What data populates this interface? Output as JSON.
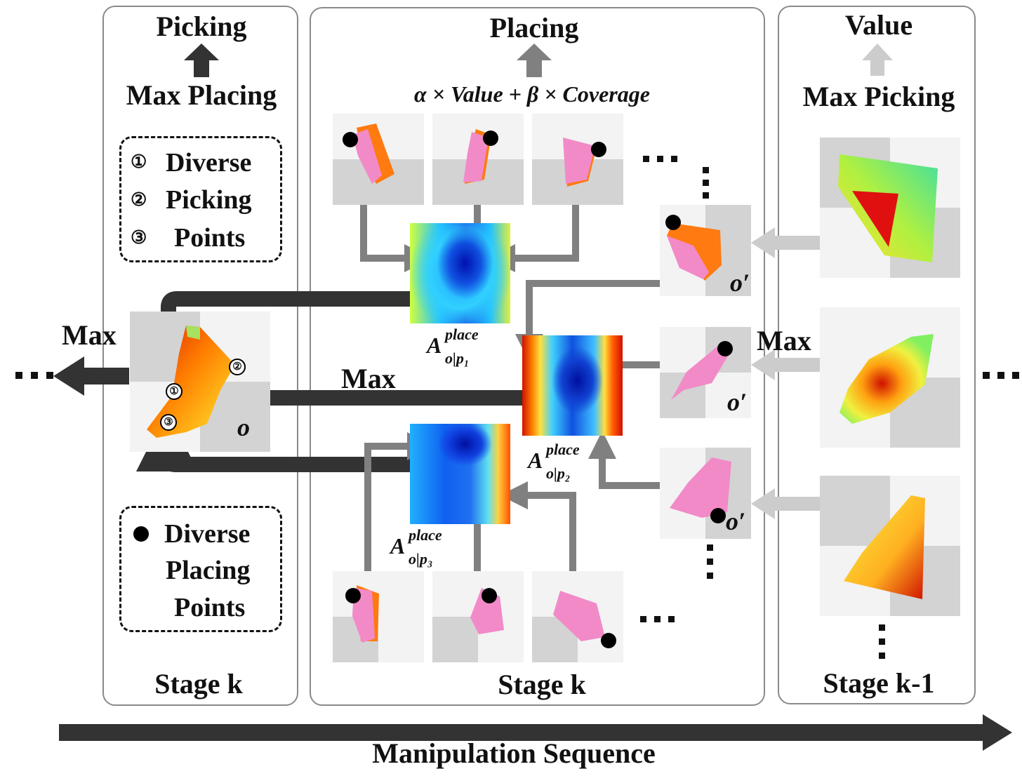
{
  "left_panel": {
    "title": "Picking",
    "subtitle": "Max Placing",
    "box1": {
      "item1_num": "①",
      "item1": "Diverse",
      "item2_num": "②",
      "item2": "Picking",
      "item3_num": "③",
      "item3": "Points"
    },
    "box2": {
      "line1": "Diverse",
      "line2": "Placing",
      "line3": "Points"
    },
    "stage": "Stage k",
    "obs_label": "o",
    "point_labels": [
      "①",
      "②",
      "③"
    ]
  },
  "middle_panel": {
    "title": "Placing",
    "formula": "α × Value + β × Coverage",
    "heatmap_labels": [
      {
        "main": "A",
        "sup": "place",
        "sub": "o|p₁"
      },
      {
        "main": "A",
        "sup": "place",
        "sub": "o|p₂"
      },
      {
        "main": "A",
        "sup": "place",
        "sub": "o|p₃"
      }
    ],
    "stage": "Stage k",
    "max_label": "Max",
    "obs_labels": [
      "o′",
      "o′",
      "o′"
    ]
  },
  "right_panel": {
    "title": "Value",
    "subtitle": "Max Picking",
    "stage": "Stage k-1"
  },
  "labels": {
    "max_left": "Max",
    "max_right": "Max",
    "ellipsis": "···",
    "sequence": "Manipulation Sequence"
  },
  "colors": {
    "panel_border": "#8a8a8a",
    "dark_arrow": "#333333",
    "gray_arrow": "#808080",
    "light_arrow": "#cccccc",
    "cloth_pink": "#f28ac8",
    "cloth_orange": "#ff7a10"
  }
}
